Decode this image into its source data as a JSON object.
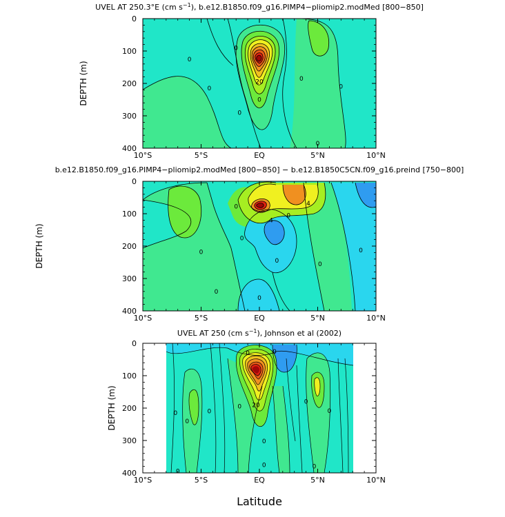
{
  "figure": {
    "xlabel": "Latitude"
  },
  "chart_data": [
    {
      "type": "heatmap",
      "title_pre": "UVEL AT 250.3",
      "title_deg": "°",
      "title_post": "E (cm s",
      "title_exp": "−1",
      "title_tail": "), b.e12.B1850.f09_g16.PIMP4−pliomip2.modMed [800−850]",
      "ylabel": "DEPTH (m)",
      "xlim": [
        -10,
        10
      ],
      "ylim": [
        400,
        0
      ],
      "xticks": [
        "10°S",
        "5°S",
        "EQ",
        "5°N",
        "10°N"
      ],
      "yticks": [
        "0",
        "100",
        "200",
        "300",
        "400"
      ],
      "contour_labels": [
        {
          "text": "20",
          "x": 0.0,
          "y": 195
        },
        {
          "text": "0",
          "x": -6.0,
          "y": 125
        },
        {
          "text": "0",
          "x": -4.3,
          "y": 215
        },
        {
          "text": "0",
          "x": -1.7,
          "y": 290
        },
        {
          "text": "0",
          "x": 0.0,
          "y": 250
        },
        {
          "text": "0",
          "x": 3.6,
          "y": 185
        },
        {
          "text": "0",
          "x": 7.0,
          "y": 210
        },
        {
          "text": "0",
          "x": 5.0,
          "y": 385
        },
        {
          "text": "0",
          "x": -2.0,
          "y": 90
        }
      ]
    },
    {
      "type": "heatmap",
      "title": "b.e12.B1850.f09_g16.PIMP4−pliomip2.modMed [800−850] − b.e12.B1850C5CN.f09_g16.preind [750−800]",
      "ylabel": "DEPTH (m)",
      "xlim": [
        -10,
        10
      ],
      "ylim": [
        400,
        0
      ],
      "xticks": [
        "10°S",
        "5°S",
        "EQ",
        "5°N",
        "10°N"
      ],
      "yticks": [
        "0",
        "100",
        "200",
        "300",
        "400"
      ],
      "contour_labels": [
        {
          "text": "4",
          "x": 4.2,
          "y": 68
        },
        {
          "text": "4",
          "x": 1.0,
          "y": 120
        },
        {
          "text": "0",
          "x": -2.0,
          "y": 78
        },
        {
          "text": "0",
          "x": -1.5,
          "y": 175
        },
        {
          "text": "0",
          "x": -5.0,
          "y": 218
        },
        {
          "text": "0",
          "x": -3.7,
          "y": 340
        },
        {
          "text": "0",
          "x": 0.0,
          "y": 360
        },
        {
          "text": "0",
          "x": 5.2,
          "y": 255
        },
        {
          "text": "0",
          "x": 8.7,
          "y": 213
        },
        {
          "text": "0",
          "x": 2.5,
          "y": 105
        },
        {
          "text": "0",
          "x": 1.5,
          "y": 245
        }
      ]
    },
    {
      "type": "heatmap",
      "title_pre": "UVEL AT 250 (cm s",
      "title_exp": "−1",
      "title_tail": "), Johnson et al (2002)",
      "ylabel": "DEPTH (m)",
      "xlabel": "Latitude",
      "xlim": [
        -10,
        10
      ],
      "ylim": [
        400,
        0
      ],
      "xticks": [
        "10°S",
        "5°S",
        "EQ",
        "5°N",
        "10°N"
      ],
      "yticks": [
        "0",
        "100",
        "200",
        "300",
        "400"
      ],
      "data_extent_x": [
        -8,
        8.1
      ],
      "contour_labels": [
        {
          "text": "20",
          "x": -0.3,
          "y": 190
        },
        {
          "text": "0",
          "x": -7.2,
          "y": 215
        },
        {
          "text": "0",
          "x": -6.2,
          "y": 240
        },
        {
          "text": "0",
          "x": -4.3,
          "y": 210
        },
        {
          "text": "0",
          "x": -1.7,
          "y": 195
        },
        {
          "text": "0",
          "x": 0.4,
          "y": 302
        },
        {
          "text": "0",
          "x": 0.4,
          "y": 375
        },
        {
          "text": "0",
          "x": 4.0,
          "y": 180
        },
        {
          "text": "0",
          "x": 6.0,
          "y": 208
        },
        {
          "text": "0",
          "x": 4.7,
          "y": 380
        },
        {
          "text": "0",
          "x": -7.0,
          "y": 395
        },
        {
          "text": "0",
          "x": -1.0,
          "y": 30
        },
        {
          "text": "0",
          "x": 1.3,
          "y": 25
        }
      ]
    }
  ],
  "colors": {
    "background_field": "#20e6c8",
    "cyan": "#2ad6ee",
    "light_green": "#40e890",
    "green": "#6cea3c",
    "lime": "#a6ee22",
    "yellow": "#f0f020",
    "orange": "#f09020",
    "red": "#e02010",
    "dark_red": "#a00808",
    "blue": "#2f9cf0"
  }
}
